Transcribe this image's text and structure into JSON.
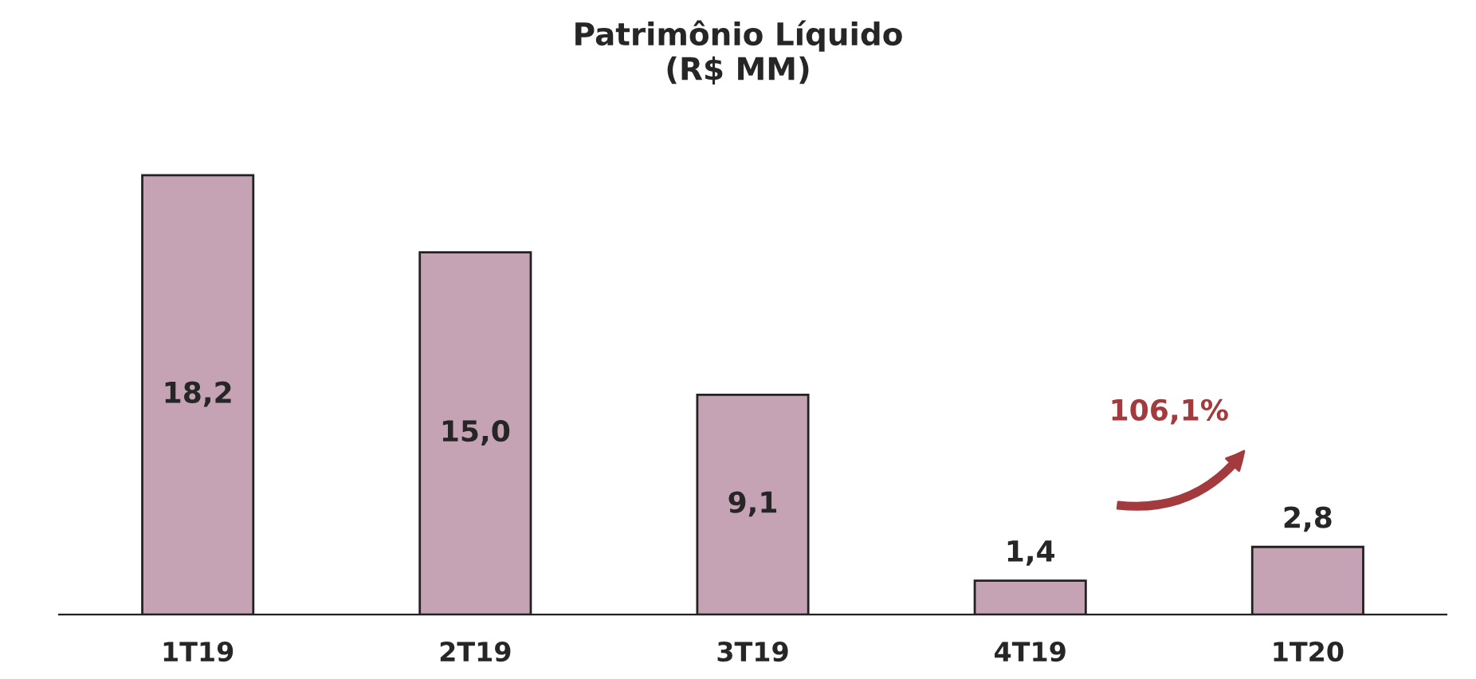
{
  "chart_data": {
    "type": "bar",
    "title": "Patrimônio Líquido\n(R$ MM)",
    "categories": [
      "1T19",
      "2T19",
      "3T19",
      "4T19",
      "1T20"
    ],
    "values": [
      18.2,
      15.0,
      9.1,
      1.4,
      2.8
    ],
    "value_labels": [
      "18,2",
      "15,0",
      "9,1",
      "1,4",
      "2,8"
    ],
    "color": "#c6a3b4",
    "annotations": [
      "106,1%"
    ],
    "grid": false,
    "legend": false
  }
}
